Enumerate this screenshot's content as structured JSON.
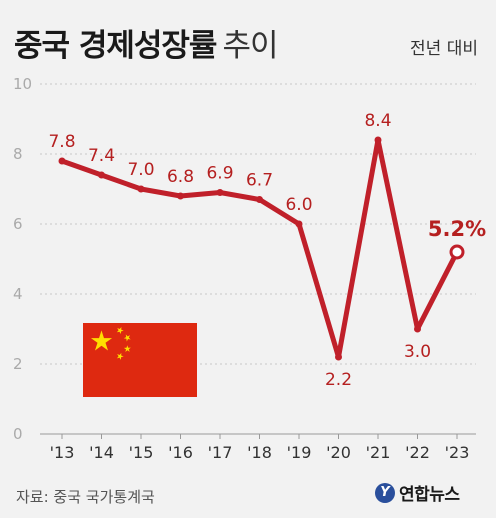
{
  "header": {
    "title_bold": "중국 경제성장률",
    "title_light": "추이",
    "subtitle": "전년 대비"
  },
  "footer": {
    "source": "자료: 중국 국가통계국",
    "logo_mark": "Y",
    "logo_text": "연합뉴스"
  },
  "colors": {
    "line": "#c0202a",
    "label": "#b52020",
    "grid": "#c8c8c8",
    "axis_text": "#666666",
    "background": "#f2f2f2",
    "flag_red": "#de2910",
    "flag_star": "#ffde00"
  },
  "flag": {
    "icon": "china-flag-icon"
  },
  "chart_data": {
    "type": "line",
    "categories": [
      "'13",
      "'14",
      "'15",
      "'16",
      "'17",
      "'18",
      "'19",
      "'20",
      "'21",
      "'22",
      "'23"
    ],
    "values": [
      7.8,
      7.4,
      7.0,
      6.8,
      6.9,
      6.7,
      6.0,
      2.2,
      8.4,
      3.0,
      5.2
    ],
    "data_labels": [
      "7.8",
      "7.4",
      "7.0",
      "6.8",
      "6.9",
      "6.7",
      "6.0",
      "2.2",
      "8.4",
      "3.0",
      "5.2%"
    ],
    "yticks": [
      "0",
      "2",
      "4",
      "6",
      "8",
      "10"
    ],
    "ylim": [
      0,
      10
    ],
    "grid": true,
    "highlight_last": true
  }
}
